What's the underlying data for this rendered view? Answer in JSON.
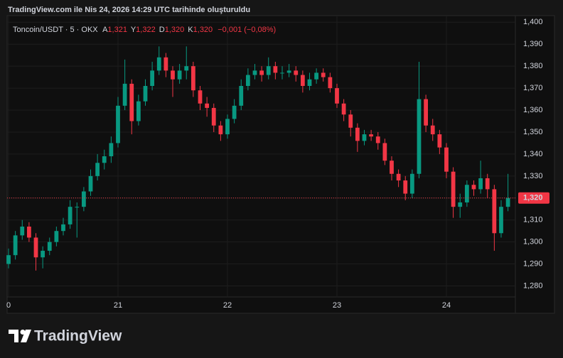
{
  "header": "TradingView.com ile Nis 24, 2026 14:29 UTC tarihinde oluşturuldu",
  "brand": "TradingView",
  "chart_data": {
    "type": "candlestick",
    "title": "Toncoin/USDT · 5 · OKX",
    "legend": [
      {
        "key": "A",
        "value": "1,321"
      },
      {
        "key": "Y",
        "value": "1,322"
      },
      {
        "key": "D",
        "value": "1,320"
      },
      {
        "key": "K",
        "value": "1,320"
      }
    ],
    "change": "−0,001 (−0,08%)",
    "up_color": "#089981",
    "down_color": "#f23645",
    "grid": true,
    "xlim": [
      19.987,
      24.63
    ],
    "xticks": [
      {
        "value": 20,
        "label": "0"
      },
      21,
      22,
      23,
      24
    ],
    "ylim": [
      1.275,
      1.403
    ],
    "yticks": [
      {
        "value": 1.28,
        "label": "1,280"
      },
      {
        "value": 1.29,
        "label": "1,290"
      },
      {
        "value": 1.3,
        "label": "1,300"
      },
      {
        "value": 1.31,
        "label": "1,310"
      },
      {
        "value": 1.32,
        "label": "1,320"
      },
      {
        "value": 1.33,
        "label": "1,330"
      },
      {
        "value": 1.34,
        "label": "1,340"
      },
      {
        "value": 1.35,
        "label": "1,350"
      },
      {
        "value": 1.36,
        "label": "1,360"
      },
      {
        "value": 1.37,
        "label": "1,370"
      },
      {
        "value": 1.38,
        "label": "1,380"
      },
      {
        "value": 1.39,
        "label": "1,390"
      },
      {
        "value": 1.4,
        "label": "1,400"
      }
    ],
    "last_price": {
      "value": 1.32,
      "label": "1,320"
    },
    "x": [
      20,
      20.0625,
      20.125,
      20.1875,
      20.25,
      20.3125,
      20.375,
      20.4375,
      20.5,
      20.5625,
      20.625,
      20.6875,
      20.75,
      20.8125,
      20.875,
      20.9375,
      21,
      21.0625,
      21.125,
      21.1875,
      21.25,
      21.3125,
      21.375,
      21.4375,
      21.5,
      21.5625,
      21.625,
      21.6875,
      21.75,
      21.8125,
      21.875,
      21.9375,
      22,
      22.0625,
      22.125,
      22.1875,
      22.25,
      22.3125,
      22.375,
      22.4375,
      22.5,
      22.5625,
      22.625,
      22.6875,
      22.75,
      22.8125,
      22.875,
      22.9375,
      23,
      23.0625,
      23.125,
      23.1875,
      23.25,
      23.3125,
      23.375,
      23.4375,
      23.5,
      23.5625,
      23.625,
      23.6875,
      23.75,
      23.8125,
      23.875,
      23.9375,
      24,
      24.0625,
      24.125,
      24.1875,
      24.25,
      24.3125,
      24.375,
      24.4375,
      24.5,
      24.5625
    ],
    "open": [
      1.29,
      1.294,
      1.303,
      1.307,
      1.302,
      1.293,
      1.296,
      1.3,
      1.305,
      1.308,
      1.316,
      1.316,
      1.323,
      1.33,
      1.336,
      1.339,
      1.345,
      1.362,
      1.372,
      1.355,
      1.364,
      1.371,
      1.378,
      1.384,
      1.378,
      1.374,
      1.378,
      1.38,
      1.369,
      1.363,
      1.361,
      1.353,
      1.349,
      1.356,
      1.362,
      1.371,
      1.376,
      1.378,
      1.376,
      1.38,
      1.377,
      1.377,
      1.378,
      1.376,
      1.371,
      1.374,
      1.377,
      1.375,
      1.37,
      1.363,
      1.358,
      1.352,
      1.346,
      1.349,
      1.348,
      1.345,
      1.337,
      1.331,
      1.328,
      1.322,
      1.331,
      1.365,
      1.353,
      1.349,
      1.343,
      1.332,
      1.316,
      1.318,
      1.326,
      1.324,
      1.329,
      1.324,
      1.304,
      1.316
    ],
    "high": [
      1.297,
      1.305,
      1.31,
      1.309,
      1.304,
      1.298,
      1.302,
      1.307,
      1.311,
      1.319,
      1.318,
      1.325,
      1.333,
      1.34,
      1.342,
      1.348,
      1.366,
      1.383,
      1.374,
      1.367,
      1.374,
      1.382,
      1.389,
      1.386,
      1.38,
      1.381,
      1.389,
      1.382,
      1.371,
      1.366,
      1.363,
      1.355,
      1.358,
      1.365,
      1.374,
      1.379,
      1.381,
      1.38,
      1.384,
      1.382,
      1.38,
      1.381,
      1.38,
      1.378,
      1.377,
      1.379,
      1.379,
      1.377,
      1.372,
      1.365,
      1.36,
      1.354,
      1.351,
      1.351,
      1.35,
      1.347,
      1.339,
      1.333,
      1.33,
      1.333,
      1.382,
      1.367,
      1.356,
      1.351,
      1.345,
      1.334,
      1.322,
      1.328,
      1.328,
      1.337,
      1.331,
      1.326,
      1.319,
      1.331
    ],
    "low": [
      1.288,
      1.292,
      1.301,
      1.3,
      1.287,
      1.288,
      1.294,
      1.298,
      1.303,
      1.306,
      1.302,
      1.314,
      1.321,
      1.328,
      1.333,
      1.336,
      1.343,
      1.36,
      1.349,
      1.353,
      1.362,
      1.369,
      1.376,
      1.375,
      1.366,
      1.372,
      1.374,
      1.366,
      1.36,
      1.357,
      1.35,
      1.346,
      1.347,
      1.354,
      1.36,
      1.369,
      1.374,
      1.373,
      1.374,
      1.374,
      1.374,
      1.375,
      1.373,
      1.368,
      1.369,
      1.372,
      1.373,
      1.368,
      1.361,
      1.355,
      1.348,
      1.341,
      1.344,
      1.346,
      1.342,
      1.335,
      1.328,
      1.325,
      1.319,
      1.32,
      1.329,
      1.35,
      1.346,
      1.34,
      1.329,
      1.311,
      1.311,
      1.316,
      1.321,
      1.322,
      1.32,
      1.296,
      1.302,
      1.314
    ],
    "close": [
      1.294,
      1.303,
      1.307,
      1.302,
      1.293,
      1.296,
      1.3,
      1.305,
      1.308,
      1.316,
      1.316,
      1.323,
      1.33,
      1.336,
      1.339,
      1.345,
      1.362,
      1.372,
      1.355,
      1.364,
      1.371,
      1.378,
      1.384,
      1.378,
      1.374,
      1.378,
      1.38,
      1.369,
      1.363,
      1.361,
      1.353,
      1.349,
      1.356,
      1.362,
      1.371,
      1.376,
      1.378,
      1.376,
      1.38,
      1.377,
      1.377,
      1.378,
      1.376,
      1.371,
      1.374,
      1.377,
      1.375,
      1.37,
      1.363,
      1.358,
      1.352,
      1.346,
      1.349,
      1.348,
      1.345,
      1.337,
      1.331,
      1.328,
      1.322,
      1.331,
      1.365,
      1.353,
      1.349,
      1.343,
      1.332,
      1.316,
      1.318,
      1.326,
      1.324,
      1.329,
      1.324,
      1.304,
      1.316,
      1.32
    ]
  }
}
